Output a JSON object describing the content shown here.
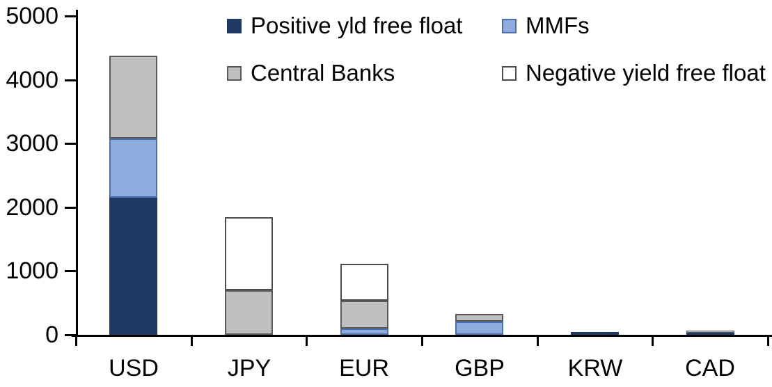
{
  "chart_data": {
    "type": "bar",
    "stacked": true,
    "title": "",
    "xlabel": "",
    "ylabel": "",
    "categories": [
      "USD",
      "JPY",
      "EUR",
      "GBP",
      "KRW",
      "CAD"
    ],
    "series": [
      {
        "name": "Positive yld free float",
        "color": "#1F3864",
        "border_color": "#1F3864",
        "values": [
          2150,
          0,
          0,
          0,
          45,
          30
        ]
      },
      {
        "name": "MMFs",
        "color": "#8FAADC",
        "border_color": "#4A6FAE",
        "values": [
          930,
          0,
          100,
          210,
          0,
          0
        ]
      },
      {
        "name": "Central Banks",
        "color": "#BFBFBF",
        "border_color": "#595959",
        "values": [
          1300,
          700,
          440,
          120,
          0,
          40
        ]
      },
      {
        "name": "Negative yield free float",
        "color": "#FFFFFF",
        "border_color": "#4D4D4D",
        "values": [
          0,
          1140,
          570,
          0,
          0,
          0
        ]
      }
    ],
    "totals": {
      "USD": 4380,
      "JPY": 1840,
      "EUR": 1110,
      "GBP": 330,
      "KRW": 45,
      "CAD": 70
    },
    "ylim": [
      0,
      5000
    ],
    "yticks": [
      0,
      1000,
      2000,
      3000,
      4000,
      5000
    ],
    "grid": false,
    "legend_position": "top",
    "legend_rows": [
      [
        "Positive yld free float",
        "MMFs"
      ],
      [
        "Central Banks",
        "Negative yield free float"
      ]
    ],
    "axis_color": "#000000",
    "background_color": "#FFFFFF"
  }
}
